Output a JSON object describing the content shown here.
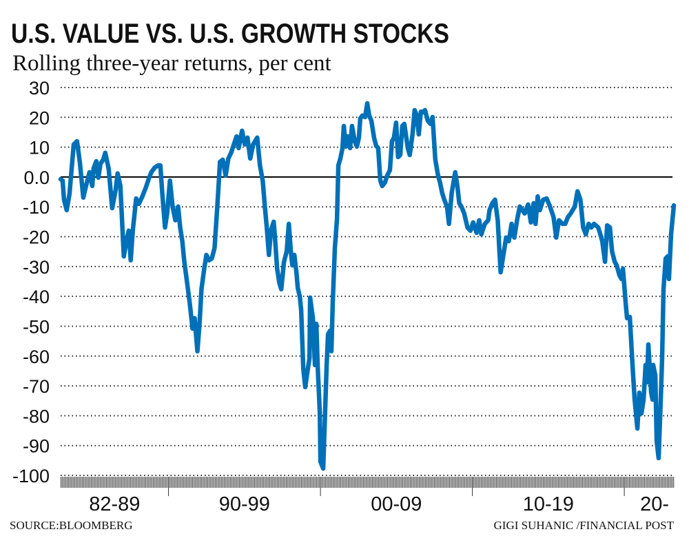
{
  "title": "U.S. VALUE VS. U.S. GROWTH STOCKS",
  "subtitle": "Rolling three-year returns, per cent",
  "source": "SOURCE:BLOOMBERG",
  "credit": "GIGI SUHANIC /FINANCIAL POST",
  "chart_data": {
    "type": "line",
    "title": "U.S. VALUE VS. U.S. GROWTH STOCKS",
    "subtitle": "Rolling three-year returns, per cent",
    "ylim": [
      -100,
      30
    ],
    "xlim": [
      1982.9,
      2023.26
    ],
    "grid": true,
    "zero_line": true,
    "line_color": "#0070b8",
    "y_ticks": [
      "30",
      "20",
      "10",
      "0.0",
      "-10",
      "-20",
      "-30",
      "-40",
      "-50",
      "-60",
      "-70",
      "-80",
      "-90",
      "-100"
    ],
    "y_tick_values": [
      30,
      20,
      10,
      0,
      -10,
      -20,
      -30,
      -40,
      -50,
      -60,
      -70,
      -80,
      -90,
      -100
    ],
    "x_periods": [
      {
        "label": "82-89",
        "start": 1982.9,
        "end": 1990
      },
      {
        "label": "90-99",
        "start": 1990,
        "end": 2000
      },
      {
        "label": "00-09",
        "start": 2000,
        "end": 2010
      },
      {
        "label": "10-19",
        "start": 2010,
        "end": 2020
      },
      {
        "label": "20-",
        "start": 2020,
        "end": 2023.26
      }
    ],
    "series": [
      {
        "points": [
          [
            1982.9,
            -0.7
          ],
          [
            1983.03,
            -1.2
          ],
          [
            1983.12,
            -7.6
          ],
          [
            1983.3,
            -11.1
          ],
          [
            1983.48,
            -5.8
          ],
          [
            1983.76,
            10.9
          ],
          [
            1983.98,
            12.0
          ],
          [
            1984.16,
            5.1
          ],
          [
            1984.39,
            -6.9
          ],
          [
            1984.57,
            -3.0
          ],
          [
            1984.8,
            1.6
          ],
          [
            1984.98,
            -3.0
          ],
          [
            1985.07,
            3.0
          ],
          [
            1985.25,
            5.3
          ],
          [
            1985.38,
            -0.2
          ],
          [
            1985.52,
            4.4
          ],
          [
            1985.7,
            5.8
          ],
          [
            1985.84,
            8.1
          ],
          [
            1986.06,
            2.8
          ],
          [
            1986.29,
            -10.4
          ],
          [
            1986.52,
            -4.4
          ],
          [
            1986.65,
            1.2
          ],
          [
            1986.83,
            -3.0
          ],
          [
            1987.06,
            -26.6
          ],
          [
            1987.19,
            -22.6
          ],
          [
            1987.38,
            -18.0
          ],
          [
            1987.51,
            -27.9
          ],
          [
            1987.65,
            -18.0
          ],
          [
            1987.87,
            -7.2
          ],
          [
            1988.05,
            -9.0
          ],
          [
            1988.28,
            -6.5
          ],
          [
            1988.51,
            -3.5
          ],
          [
            1988.69,
            -0.7
          ],
          [
            1988.87,
            1.6
          ],
          [
            1989.1,
            3.2
          ],
          [
            1989.32,
            3.9
          ],
          [
            1989.46,
            3.9
          ],
          [
            1989.59,
            -5.3
          ],
          [
            1989.77,
            -16.9
          ],
          [
            1989.91,
            -12.2
          ],
          [
            1990.09,
            -1.2
          ],
          [
            1990.27,
            -9.9
          ],
          [
            1990.45,
            -14.5
          ],
          [
            1990.63,
            -9.9
          ],
          [
            1990.77,
            -16.9
          ],
          [
            1990.91,
            -21.5
          ],
          [
            1991.04,
            -28.4
          ],
          [
            1991.22,
            -35.3
          ],
          [
            1991.4,
            -42.3
          ],
          [
            1991.58,
            -50.8
          ],
          [
            1991.72,
            -47.3
          ],
          [
            1991.9,
            -58.4
          ],
          [
            1992.04,
            -49.2
          ],
          [
            1992.17,
            -37.6
          ],
          [
            1992.35,
            -30.7
          ],
          [
            1992.49,
            -26.1
          ],
          [
            1992.67,
            -27.9
          ],
          [
            1992.85,
            -27.3
          ],
          [
            1993.03,
            -23.8
          ],
          [
            1993.21,
            -9.9
          ],
          [
            1993.39,
            5.1
          ],
          [
            1993.57,
            5.8
          ],
          [
            1993.76,
            0.5
          ],
          [
            1993.94,
            6.2
          ],
          [
            1994.12,
            8.1
          ],
          [
            1994.3,
            10.9
          ],
          [
            1994.48,
            13.6
          ],
          [
            1994.62,
            9.7
          ],
          [
            1994.84,
            15.5
          ],
          [
            1995.02,
            10.9
          ],
          [
            1995.2,
            13.2
          ],
          [
            1995.38,
            6.2
          ],
          [
            1995.57,
            10.9
          ],
          [
            1995.84,
            13.2
          ],
          [
            1996.02,
            3.9
          ],
          [
            1996.2,
            -1.2
          ],
          [
            1996.34,
            -9.9
          ],
          [
            1996.47,
            -16.9
          ],
          [
            1996.61,
            -26.1
          ],
          [
            1996.74,
            -18.0
          ],
          [
            1996.92,
            -15.0
          ],
          [
            1997.01,
            -20.3
          ],
          [
            1997.15,
            -30.7
          ],
          [
            1997.29,
            -35.3
          ],
          [
            1997.42,
            -37.6
          ],
          [
            1997.6,
            -28.4
          ],
          [
            1997.78,
            -24.9
          ],
          [
            1997.92,
            -15.7
          ],
          [
            1998.05,
            -24.9
          ],
          [
            1998.15,
            -29.6
          ],
          [
            1998.28,
            -26.1
          ],
          [
            1998.42,
            -31.9
          ],
          [
            1998.51,
            -37.2
          ],
          [
            1998.64,
            -40.0
          ],
          [
            1998.73,
            -44.6
          ],
          [
            1998.87,
            -64.2
          ],
          [
            1999.0,
            -70.4
          ],
          [
            1999.14,
            -65.4
          ],
          [
            1999.28,
            -60.7
          ],
          [
            1999.32,
            -40.4
          ],
          [
            1999.5,
            -47.3
          ],
          [
            1999.64,
            -63.0
          ],
          [
            1999.73,
            -49.2
          ],
          [
            1999.82,
            -63.5
          ],
          [
            1999.96,
            -79.2
          ],
          [
            2000.0,
            -95.4
          ],
          [
            2000.18,
            -97.7
          ],
          [
            2000.32,
            -76.9
          ],
          [
            2000.41,
            -63.0
          ],
          [
            2000.5,
            -52.7
          ],
          [
            2000.63,
            -51.5
          ],
          [
            2000.72,
            -58.4
          ],
          [
            2000.81,
            -42.3
          ],
          [
            2000.95,
            -23.8
          ],
          [
            2001.09,
            -14.1
          ],
          [
            2001.18,
            3.9
          ],
          [
            2001.31,
            6.2
          ],
          [
            2001.45,
            9.7
          ],
          [
            2001.54,
            17.1
          ],
          [
            2001.67,
            10.2
          ],
          [
            2001.81,
            13.6
          ],
          [
            2001.95,
            9.7
          ],
          [
            2002.08,
            17.1
          ],
          [
            2002.26,
            12.0
          ],
          [
            2002.4,
            10.2
          ],
          [
            2002.53,
            13.2
          ],
          [
            2002.62,
            19.6
          ],
          [
            2002.76,
            20.6
          ],
          [
            2002.94,
            20.1
          ],
          [
            2003.08,
            24.7
          ],
          [
            2003.21,
            20.6
          ],
          [
            2003.35,
            18.9
          ],
          [
            2003.53,
            13.2
          ],
          [
            2003.67,
            10.4
          ],
          [
            2003.8,
            9.7
          ],
          [
            2003.94,
            -1.2
          ],
          [
            2004.07,
            -3.0
          ],
          [
            2004.25,
            -1.8
          ],
          [
            2004.39,
            0.5
          ],
          [
            2004.57,
            2.3
          ],
          [
            2004.71,
            12.0
          ],
          [
            2004.84,
            13.2
          ],
          [
            2004.98,
            18.2
          ],
          [
            2005.11,
            6.7
          ],
          [
            2005.25,
            7.4
          ],
          [
            2005.39,
            17.1
          ],
          [
            2005.52,
            17.8
          ],
          [
            2005.75,
            9.7
          ],
          [
            2005.88,
            7.4
          ],
          [
            2006.06,
            14.3
          ],
          [
            2006.2,
            22.4
          ],
          [
            2006.34,
            20.6
          ],
          [
            2006.47,
            14.3
          ],
          [
            2006.61,
            21.9
          ],
          [
            2006.74,
            21.7
          ],
          [
            2006.88,
            22.4
          ],
          [
            2007.06,
            18.9
          ],
          [
            2007.24,
            17.8
          ],
          [
            2007.38,
            20.1
          ],
          [
            2007.56,
            5.8
          ],
          [
            2007.74,
            0.5
          ],
          [
            2007.87,
            -1.8
          ],
          [
            2008.01,
            -5.3
          ],
          [
            2008.15,
            -7.6
          ],
          [
            2008.33,
            -9.9
          ],
          [
            2008.46,
            -15.7
          ],
          [
            2008.64,
            -5.3
          ],
          [
            2008.87,
            1.6
          ],
          [
            2009.01,
            -3.0
          ],
          [
            2009.14,
            -8.8
          ],
          [
            2009.28,
            -9.9
          ],
          [
            2009.46,
            -12.2
          ],
          [
            2009.68,
            -16.9
          ],
          [
            2009.87,
            -18.0
          ],
          [
            2010.05,
            -15.2
          ],
          [
            2010.27,
            -18.7
          ],
          [
            2010.45,
            -14.5
          ],
          [
            2010.59,
            -19.2
          ],
          [
            2010.82,
            -15.7
          ],
          [
            2011.04,
            -14.5
          ],
          [
            2011.13,
            -11.1
          ],
          [
            2011.31,
            -8.8
          ],
          [
            2011.49,
            -7.6
          ],
          [
            2011.67,
            -14.5
          ],
          [
            2011.86,
            -31.9
          ],
          [
            2012.04,
            -26.1
          ],
          [
            2012.22,
            -20.3
          ],
          [
            2012.4,
            -21.5
          ],
          [
            2012.58,
            -15.7
          ],
          [
            2012.76,
            -20.3
          ],
          [
            2012.94,
            -14.5
          ],
          [
            2013.12,
            -9.9
          ],
          [
            2013.3,
            -11.1
          ],
          [
            2013.44,
            -12.2
          ],
          [
            2013.67,
            -9.2
          ],
          [
            2013.85,
            -15.2
          ],
          [
            2014.03,
            -8.8
          ],
          [
            2014.16,
            -15.7
          ],
          [
            2014.3,
            -6.5
          ],
          [
            2014.44,
            -11.1
          ],
          [
            2014.66,
            -7.6
          ],
          [
            2014.89,
            -7.2
          ],
          [
            2015.11,
            -9.9
          ],
          [
            2015.34,
            -13.4
          ],
          [
            2015.52,
            -20.3
          ],
          [
            2015.7,
            -14.5
          ],
          [
            2015.93,
            -15.7
          ],
          [
            2016.11,
            -15.7
          ],
          [
            2016.29,
            -13.4
          ],
          [
            2016.47,
            -12.2
          ],
          [
            2016.74,
            -9.9
          ],
          [
            2016.92,
            -4.8
          ],
          [
            2017.11,
            -7.6
          ],
          [
            2017.29,
            -16.9
          ],
          [
            2017.47,
            -19.2
          ],
          [
            2017.65,
            -15.7
          ],
          [
            2017.83,
            -16.9
          ],
          [
            2018.01,
            -15.7
          ],
          [
            2018.28,
            -16.9
          ],
          [
            2018.42,
            -19.2
          ],
          [
            2018.55,
            -21.5
          ],
          [
            2018.73,
            -28.4
          ],
          [
            2018.87,
            -16.2
          ],
          [
            2019.05,
            -16.9
          ],
          [
            2019.19,
            -24.9
          ],
          [
            2019.37,
            -28.4
          ],
          [
            2019.5,
            -29.6
          ],
          [
            2019.68,
            -33.0
          ],
          [
            2019.82,
            -34.2
          ],
          [
            2019.91,
            -30.7
          ],
          [
            2020.09,
            -42.3
          ],
          [
            2020.18,
            -47.3
          ],
          [
            2020.36,
            -46.9
          ],
          [
            2020.54,
            -63.0
          ],
          [
            2020.68,
            -74.6
          ],
          [
            2020.86,
            -84.3
          ],
          [
            2020.99,
            -72.3
          ],
          [
            2021.13,
            -79.2
          ],
          [
            2021.27,
            -74.6
          ],
          [
            2021.4,
            -63.0
          ],
          [
            2021.49,
            -68.8
          ],
          [
            2021.58,
            -56.1
          ],
          [
            2021.77,
            -72.3
          ],
          [
            2021.86,
            -74.6
          ],
          [
            2021.9,
            -63.0
          ],
          [
            2022.04,
            -66.5
          ],
          [
            2022.13,
            -88.5
          ],
          [
            2022.26,
            -94.2
          ],
          [
            2022.4,
            -74.6
          ],
          [
            2022.49,
            -60.7
          ],
          [
            2022.58,
            -37.6
          ],
          [
            2022.72,
            -27.3
          ],
          [
            2022.85,
            -26.6
          ],
          [
            2022.94,
            -34.2
          ],
          [
            2023.08,
            -19.2
          ],
          [
            2023.26,
            -9.5
          ]
        ]
      }
    ]
  }
}
